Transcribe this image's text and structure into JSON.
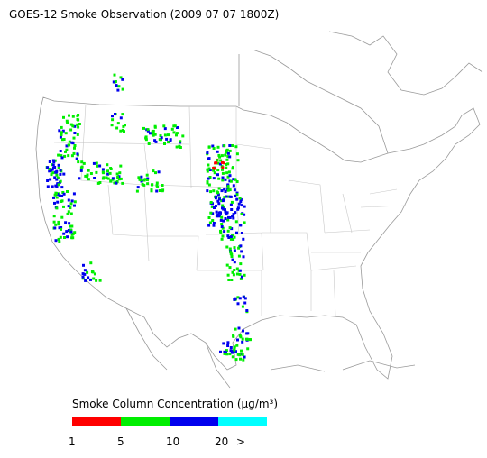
{
  "header": {
    "title": "GOES-12 Smoke Observation (2009 07 07  1800Z)"
  },
  "legend": {
    "title": "Smoke Column Concentration (μg/m³)",
    "colors": [
      "#ff0000",
      "#00ee00",
      "#0000ee",
      "#00ffff"
    ],
    "labels": [
      "1",
      "5",
      "10",
      "20",
      ">"
    ]
  }
}
